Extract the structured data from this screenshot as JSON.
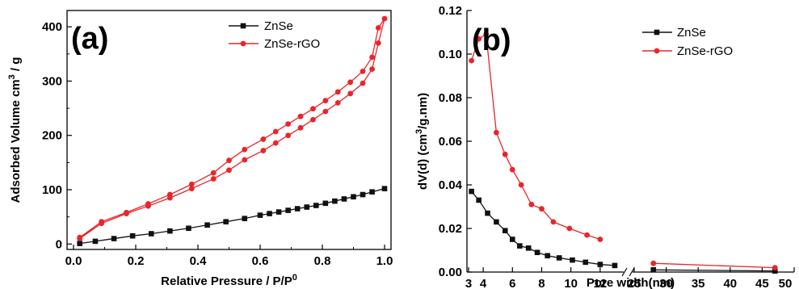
{
  "colors": {
    "znse": "#111111",
    "znse_rgo": "#e8262a",
    "axis": "#000000"
  },
  "chart_data": [
    {
      "type": "line",
      "panel_label": "(a)",
      "xlabel": "Relative Pressure / P/P",
      "xlabel_sup": "0",
      "ylabel": "Adsorbed Volume cm",
      "ylabel_sup": "3",
      "ylabel_tail": " / g",
      "xlim": [
        0.0,
        1.0
      ],
      "ylim": [
        -10,
        430
      ],
      "xticks": [
        0.0,
        0.2,
        0.4,
        0.6,
        0.8,
        1.0
      ],
      "xtick_labels": [
        "0.0",
        "0.2",
        "0.4",
        "0.6",
        "0.8",
        "1.0"
      ],
      "yticks": [
        0,
        100,
        200,
        300,
        400
      ],
      "ytick_labels": [
        "0",
        "100",
        "200",
        "300",
        "400"
      ],
      "legend_position": "top-right",
      "legend": [
        "ZnSe",
        "ZnSe-rGO"
      ],
      "series": [
        {
          "name": "ZnSe",
          "color": "#111111",
          "marker": "square",
          "x": [
            0.02,
            0.07,
            0.13,
            0.19,
            0.25,
            0.31,
            0.37,
            0.43,
            0.49,
            0.55,
            0.6,
            0.63,
            0.66,
            0.69,
            0.72,
            0.75,
            0.78,
            0.81,
            0.84,
            0.87,
            0.9,
            0.93,
            0.96,
            1.0
          ],
          "y": [
            1,
            5,
            10,
            15,
            19,
            24,
            29,
            35,
            41,
            47,
            53,
            56,
            59,
            62,
            65,
            68,
            71,
            75,
            79,
            83,
            87,
            91,
            96,
            102
          ]
        },
        {
          "name": "ZnSe-rGO",
          "color": "#e8262a",
          "marker": "circle",
          "x": [
            0.02,
            0.09,
            0.17,
            0.24,
            0.31,
            0.38,
            0.45,
            0.5,
            0.55,
            0.61,
            0.65,
            0.69,
            0.73,
            0.77,
            0.81,
            0.85,
            0.89,
            0.93,
            0.96,
            0.98,
            1.0,
            0.98,
            0.96,
            0.93,
            0.89,
            0.85,
            0.81,
            0.77,
            0.73,
            0.69,
            0.65,
            0.61,
            0.55,
            0.5,
            0.45,
            0.38,
            0.31,
            0.24,
            0.17,
            0.09,
            0.02
          ],
          "y": [
            10,
            38,
            56,
            70,
            85,
            102,
            120,
            136,
            155,
            172,
            186,
            200,
            214,
            229,
            244,
            260,
            277,
            296,
            322,
            370,
            415,
            398,
            344,
            318,
            298,
            280,
            264,
            249,
            235,
            221,
            207,
            193,
            174,
            154,
            131,
            110,
            91,
            74,
            58,
            41,
            12
          ]
        }
      ]
    },
    {
      "type": "line",
      "panel_label": "(b)",
      "xlabel": "Pore width(nm)",
      "ylabel": "dV(d) (cm",
      "ylabel_sup": "3",
      "ylabel_tail": "/g.nm)",
      "axis_break": true,
      "xlim_left": [
        3,
        13.5
      ],
      "xlim_right": [
        25,
        50
      ],
      "ylim": [
        0,
        0.12
      ],
      "xticks_left": [
        3,
        4,
        6,
        8,
        10,
        12
      ],
      "xtick_labels_left": [
        "3",
        "4",
        "6",
        "8",
        "10",
        "12"
      ],
      "xticks_right": [
        25,
        30,
        35,
        40,
        45,
        50
      ],
      "xtick_labels_right": [
        "25",
        "30",
        "35",
        "40",
        "45",
        "50"
      ],
      "yticks": [
        0.0,
        0.02,
        0.04,
        0.06,
        0.08,
        0.1,
        0.12
      ],
      "ytick_labels": [
        "0.00",
        "0.02",
        "0.04",
        "0.06",
        "0.08",
        "0.10",
        "0.12"
      ],
      "legend_position": "top-right",
      "legend": [
        "ZnSe",
        "ZnSe-rGO"
      ],
      "series": [
        {
          "name": "ZnSe",
          "color": "#111111",
          "marker": "square",
          "x": [
            3.2,
            3.7,
            4.3,
            4.9,
            5.5,
            6.0,
            6.5,
            7.1,
            7.7,
            8.4,
            9.2,
            10.1,
            11.0,
            12.0,
            13.0,
            28.0,
            47.0
          ],
          "y": [
            0.037,
            0.033,
            0.027,
            0.023,
            0.019,
            0.015,
            0.012,
            0.011,
            0.009,
            0.0075,
            0.0065,
            0.0055,
            0.0045,
            0.0035,
            0.003,
            0.001,
            0.0005
          ]
        },
        {
          "name": "ZnSe-rGO",
          "color": "#e8262a",
          "marker": "circle",
          "x": [
            3.2,
            3.7,
            4.2,
            4.9,
            5.5,
            6.0,
            6.6,
            7.3,
            8.0,
            8.8,
            9.9,
            11.1,
            12.0,
            28.0,
            47.0
          ],
          "y": [
            0.097,
            0.107,
            0.109,
            0.064,
            0.054,
            0.047,
            0.04,
            0.031,
            0.029,
            0.023,
            0.02,
            0.017,
            0.015,
            0.004,
            0.002
          ]
        }
      ]
    }
  ]
}
